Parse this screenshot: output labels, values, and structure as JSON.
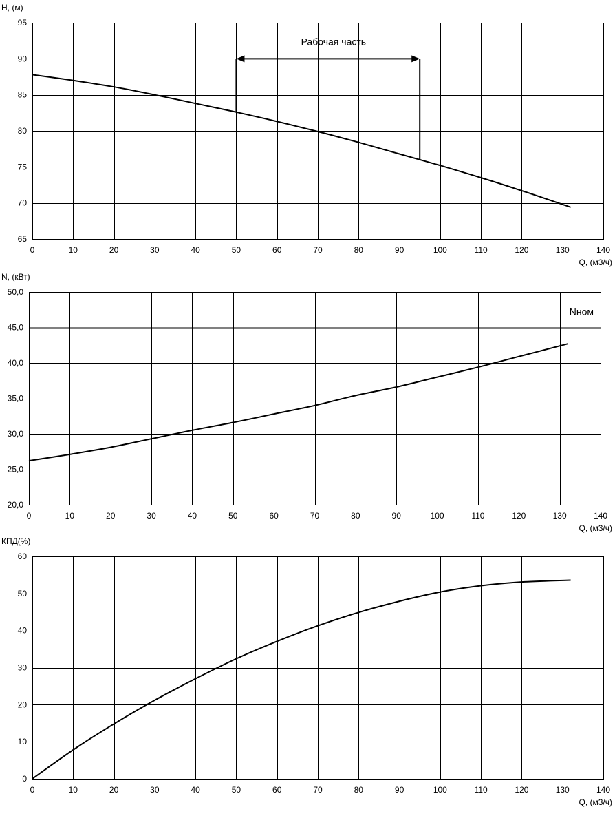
{
  "chart_data": [
    {
      "type": "line",
      "ylabel": "H, (м)",
      "xlabel": "Q, (м3/ч)",
      "xlim": [
        0,
        140
      ],
      "ylim": [
        65,
        95
      ],
      "x_ticks": [
        0,
        10,
        20,
        30,
        40,
        50,
        60,
        70,
        80,
        90,
        100,
        110,
        120,
        130,
        140
      ],
      "y_ticks": [
        65,
        70,
        75,
        80,
        85,
        90,
        95
      ],
      "y_tick_labels": [
        "65",
        "70",
        "75",
        "80",
        "85",
        "90",
        "95"
      ],
      "grid": true,
      "series": [
        {
          "x": [
            0,
            10,
            20,
            30,
            40,
            50,
            60,
            70,
            80,
            90,
            100,
            110,
            120,
            132
          ],
          "values": [
            87.8,
            87.0,
            86.1,
            85.0,
            83.8,
            82.6,
            81.3,
            79.9,
            78.4,
            76.8,
            75.2,
            73.5,
            71.7,
            69.4
          ]
        }
      ],
      "annotation": {
        "text": "Рабочая часть",
        "x_start": 50,
        "x_end": 95,
        "y": 90,
        "y_start_bottom": 82.6,
        "y_end_bottom": 76.0
      }
    },
    {
      "type": "line",
      "ylabel": "N, (кВт)",
      "xlabel": "Q, (м3/ч)",
      "xlim": [
        0,
        140
      ],
      "ylim": [
        20,
        50
      ],
      "x_ticks": [
        0,
        10,
        20,
        30,
        40,
        50,
        60,
        70,
        80,
        90,
        100,
        110,
        120,
        130,
        140
      ],
      "y_ticks": [
        20,
        25,
        30,
        35,
        40,
        45,
        50
      ],
      "y_tick_labels": [
        "20,0",
        "25,0",
        "30,0",
        "35,0",
        "40,0",
        "45,0",
        "50,0"
      ],
      "grid": true,
      "series": [
        {
          "x": [
            0,
            10,
            20,
            30,
            40,
            50,
            60,
            70,
            80,
            90,
            100,
            110,
            120,
            132
          ],
          "values": [
            26.2,
            27.1,
            28.1,
            29.3,
            30.5,
            31.6,
            32.8,
            34.0,
            35.4,
            36.6,
            38.0,
            39.4,
            40.9,
            42.7
          ]
        }
      ],
      "reference_line": {
        "label": "Nном",
        "value": 45
      }
    },
    {
      "type": "line",
      "ylabel": "КПД(%)",
      "xlabel": "Q, (м3/ч)",
      "xlim": [
        0,
        140
      ],
      "ylim": [
        0,
        60
      ],
      "x_ticks": [
        0,
        10,
        20,
        30,
        40,
        50,
        60,
        70,
        80,
        90,
        100,
        110,
        120,
        130,
        140
      ],
      "y_ticks": [
        0,
        10,
        20,
        30,
        40,
        50,
        60
      ],
      "y_tick_labels": [
        "0",
        "10",
        "20",
        "30",
        "40",
        "50",
        "60"
      ],
      "grid": true,
      "series": [
        {
          "x": [
            0,
            10,
            20,
            30,
            40,
            50,
            60,
            70,
            80,
            90,
            100,
            110,
            120,
            132
          ],
          "values": [
            0,
            7.8,
            14.8,
            21.2,
            27.0,
            32.4,
            37.1,
            41.3,
            44.9,
            47.9,
            50.4,
            52.1,
            53.1,
            53.6
          ]
        }
      ]
    }
  ]
}
